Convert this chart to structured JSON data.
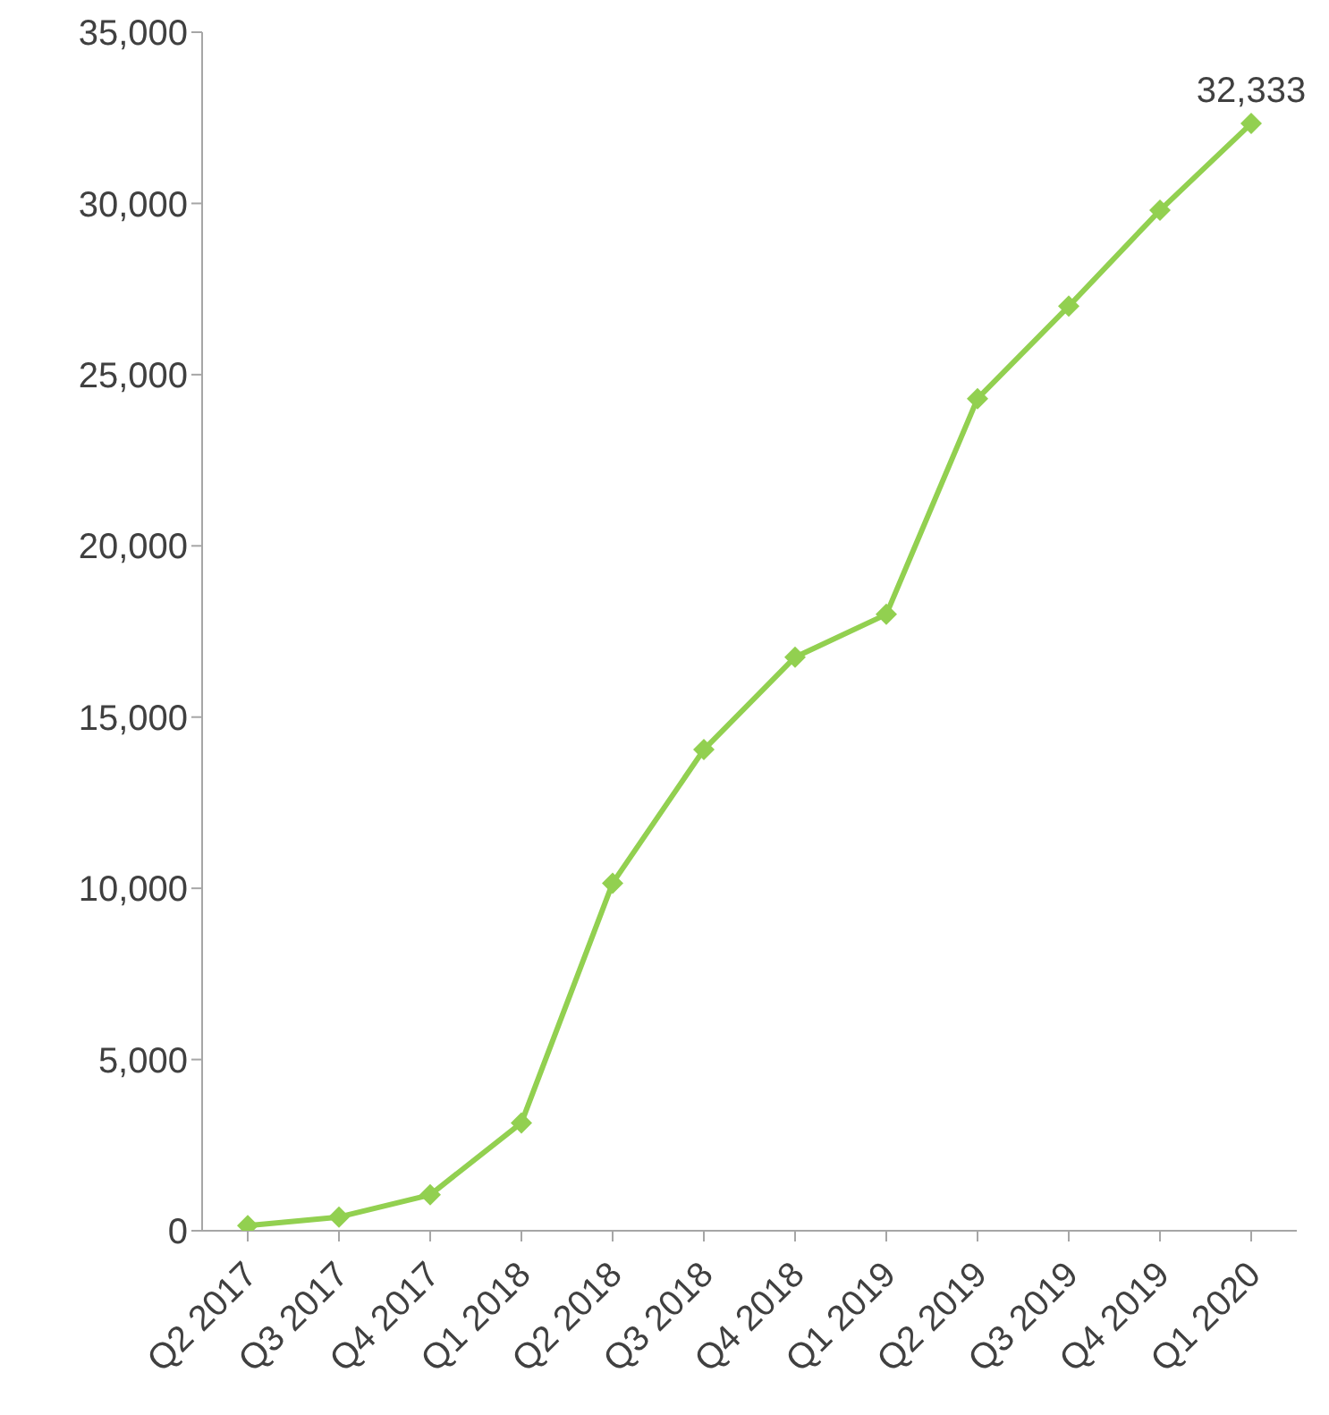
{
  "chart_data": {
    "type": "line",
    "categories": [
      "Q2 2017",
      "Q3 2017",
      "Q4 2017",
      "Q1 2018",
      "Q2 2018",
      "Q3 2018",
      "Q4 2018",
      "Q1 2019",
      "Q2 2019",
      "Q3 2019",
      "Q4 2019",
      "Q1 2020"
    ],
    "series": [
      {
        "color": "#92d050",
        "values": [
          150,
          400,
          1050,
          3150,
          10150,
          14050,
          16750,
          18000,
          24300,
          27000,
          29800,
          32333
        ],
        "value_labels": [
          null,
          null,
          null,
          null,
          null,
          null,
          null,
          null,
          null,
          null,
          null,
          "32,333"
        ]
      }
    ],
    "ylim": [
      0,
      35000
    ],
    "yticks": [
      {
        "value": 0,
        "label": "0"
      },
      {
        "value": 5000,
        "label": "5,000"
      },
      {
        "value": 10000,
        "label": "10,000"
      },
      {
        "value": 15000,
        "label": "15,000"
      },
      {
        "value": 20000,
        "label": "20,000"
      },
      {
        "value": 25000,
        "label": "25,000"
      },
      {
        "value": 30000,
        "label": "30,000"
      },
      {
        "value": 35000,
        "label": "35,000"
      }
    ],
    "grid": false,
    "legend": false,
    "marker": "diamond",
    "line_style": "solid"
  }
}
